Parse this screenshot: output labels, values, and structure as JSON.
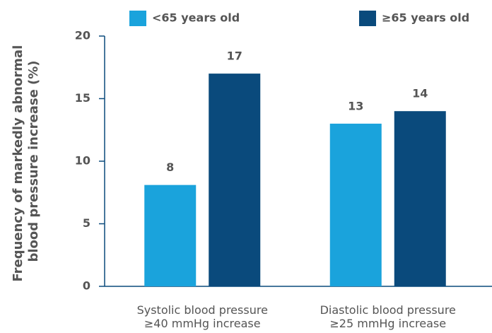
{
  "chart_data": {
    "type": "bar",
    "ylabel": [
      "Frequency of markedly abnormal",
      "blood pressure increase (%)"
    ],
    "categories": [
      [
        "Systolic blood pressure",
        "≥40 mmHg increase"
      ],
      [
        "Diastolic blood pressure",
        "≥25 mmHg increase"
      ]
    ],
    "series": [
      {
        "name": "<65 years old",
        "color": "#1aa3dc",
        "values": [
          8.1,
          13
        ],
        "value_labels": [
          "8",
          "13"
        ]
      },
      {
        "name": "≥65 years old",
        "color": "#0a4a7c",
        "values": [
          17,
          14
        ],
        "value_labels": [
          "17",
          "14"
        ]
      }
    ],
    "ylim": [
      0,
      20
    ],
    "yticks": [
      0,
      5,
      10,
      15,
      20
    ],
    "grid": false
  }
}
